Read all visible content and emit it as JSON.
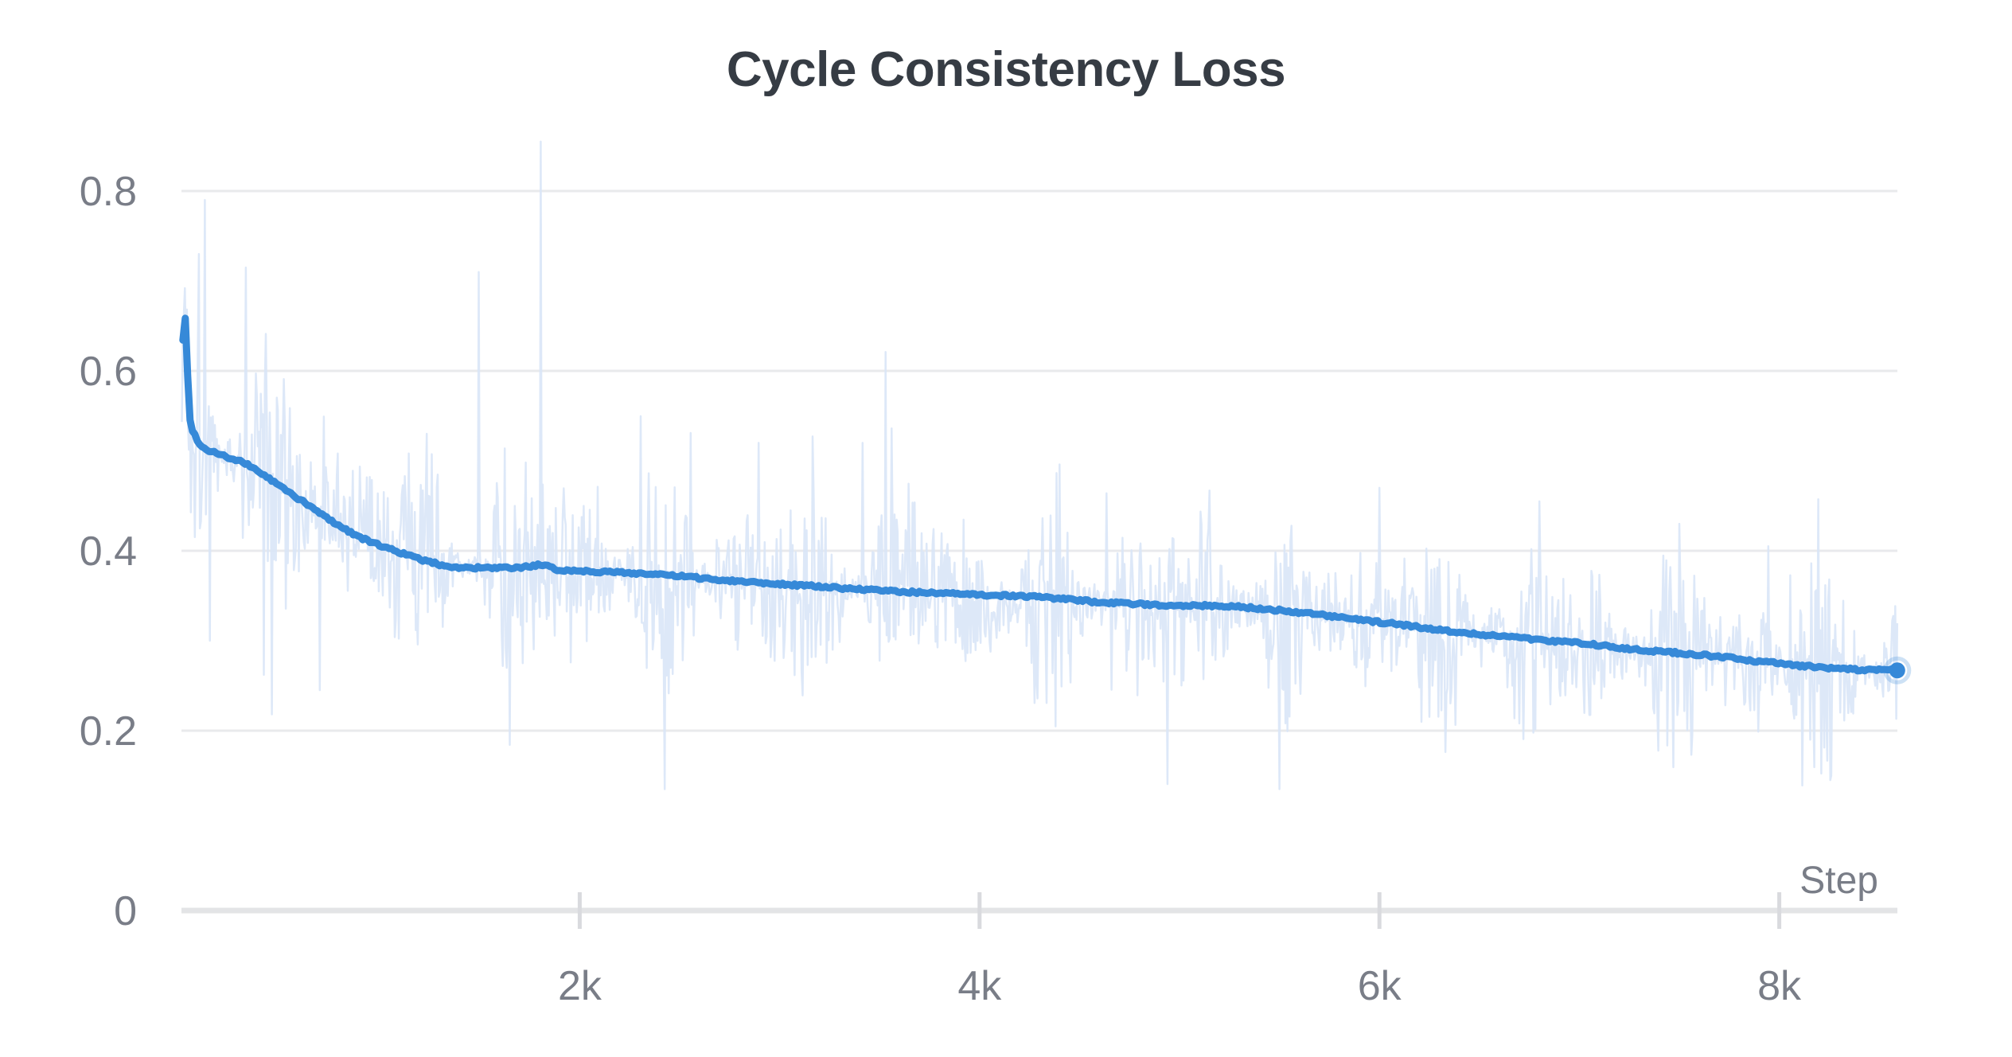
{
  "chart_data": {
    "type": "line",
    "title": "Cycle Consistency Loss",
    "xlabel": "Step",
    "ylabel": "",
    "x_axis": {
      "min": 0,
      "max": 8590,
      "ticks": [
        {
          "v": 2000,
          "label": "2k"
        },
        {
          "v": 4000,
          "label": "4k"
        },
        {
          "v": 6000,
          "label": "6k"
        },
        {
          "v": 8000,
          "label": "8k"
        }
      ]
    },
    "y_axis": {
      "min": 0,
      "max": 0.92,
      "ticks": [
        {
          "v": 0,
          "label": "0"
        },
        {
          "v": 0.2,
          "label": "0.2"
        },
        {
          "v": 0.4,
          "label": "0.4"
        },
        {
          "v": 0.6,
          "label": "0.6"
        },
        {
          "v": 0.8,
          "label": "0.8"
        }
      ]
    },
    "grid": {
      "horizontal": true,
      "vertical": false
    },
    "legend": null,
    "series": [
      {
        "name": "raw",
        "role": "unsmoothed-noisy-line",
        "color": "#d9e6f7",
        "opacity": 0.9,
        "stroke_width": 2.5,
        "generate": {
          "seed": 1337,
          "interval": 5,
          "amp_envelope": [
            [
              0,
              0.105
            ],
            [
              800,
              0.1
            ],
            [
              2000,
              0.095
            ],
            [
              4000,
              0.09
            ],
            [
              6000,
              0.088
            ],
            [
              8590,
              0.086
            ]
          ],
          "spike_prob": 0.055,
          "spike_gain_min": 1.7,
          "spike_gain_max": 3.0,
          "clamp_min": 0.135,
          "max_below_smooth": 0.26,
          "clamp_max": 0.88
        },
        "forced_points": [
          [
            95,
            0.73
          ],
          [
            125,
            0.79
          ],
          [
            150,
            0.3
          ],
          [
            330,
            0.715
          ],
          [
            420,
            0.262
          ],
          [
            700,
            0.245
          ],
          [
            1495,
            0.71
          ],
          [
            1805,
            0.855
          ],
          [
            2555,
            0.531
          ],
          [
            2895,
            0.52
          ],
          [
            3415,
            0.52
          ],
          [
            3560,
            0.536
          ],
          [
            4635,
            0.464
          ],
          [
            5150,
            0.467
          ],
          [
            6000,
            0.47
          ],
          [
            6800,
            0.455
          ],
          [
            7500,
            0.43
          ],
          [
            8115,
            0.139
          ],
          [
            8260,
            0.15
          ]
        ]
      },
      {
        "name": "smoothed",
        "role": "smoothed-line",
        "color": "#3689d8",
        "stroke_width": 9,
        "points": [
          [
            15,
            0.635
          ],
          [
            25,
            0.662
          ],
          [
            35,
            0.615
          ],
          [
            48,
            0.549
          ],
          [
            76,
            0.528
          ],
          [
            115,
            0.515
          ],
          [
            155,
            0.511
          ],
          [
            195,
            0.508
          ],
          [
            255,
            0.502
          ],
          [
            334,
            0.496
          ],
          [
            454,
            0.479
          ],
          [
            573,
            0.461
          ],
          [
            693,
            0.443
          ],
          [
            812,
            0.426
          ],
          [
            931,
            0.412
          ],
          [
            1051,
            0.402
          ],
          [
            1210,
            0.39
          ],
          [
            1369,
            0.382
          ],
          [
            1489,
            0.381
          ],
          [
            1688,
            0.381
          ],
          [
            1807,
            0.384
          ],
          [
            1887,
            0.379
          ],
          [
            2086,
            0.377
          ],
          [
            2285,
            0.375
          ],
          [
            2484,
            0.372
          ],
          [
            2683,
            0.368
          ],
          [
            2950,
            0.364
          ],
          [
            3212,
            0.36
          ],
          [
            3479,
            0.356
          ],
          [
            3877,
            0.352
          ],
          [
            4275,
            0.349
          ],
          [
            4602,
            0.343
          ],
          [
            4872,
            0.34
          ],
          [
            5270,
            0.338
          ],
          [
            5628,
            0.331
          ],
          [
            5868,
            0.324
          ],
          [
            6067,
            0.319
          ],
          [
            6266,
            0.313
          ],
          [
            6465,
            0.308
          ],
          [
            6664,
            0.304
          ],
          [
            6863,
            0.3
          ],
          [
            7062,
            0.296
          ],
          [
            7261,
            0.291
          ],
          [
            7460,
            0.287
          ],
          [
            7659,
            0.283
          ],
          [
            7858,
            0.278
          ],
          [
            8117,
            0.272
          ],
          [
            8376,
            0.268
          ],
          [
            8590,
            0.267
          ]
        ],
        "endpoint": {
          "step": 8590,
          "value": 0.267,
          "dot_radius": 10,
          "halo_radius": 15
        }
      }
    ]
  },
  "styles": {
    "background": "#ffffff",
    "title_color": "#363c44",
    "axis_label_color": "#797d87",
    "gridline_color": "#e9eaec",
    "axis_line_color": "#e3e4e6",
    "tick_color": "#d9dade"
  }
}
